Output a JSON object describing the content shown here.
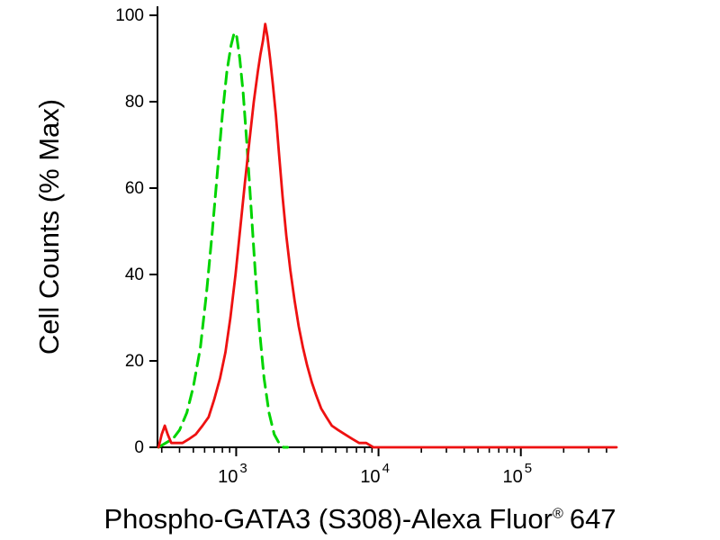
{
  "chart_data": {
    "type": "line",
    "subtype": "flow-cytometry-histogram",
    "title": "",
    "xlabel": "Phospho-GATA3 (S308)-Alexa Fluor® 647",
    "xlabel_parts": {
      "main": "Phospho-GATA3 (S308)-Alexa Fluor",
      "registered_mark": "®",
      "suffix": "647"
    },
    "ylabel": "Cell Counts (% Max)",
    "x_scale": "log",
    "xlim": [
      280,
      470000
    ],
    "ylim": [
      0,
      100
    ],
    "y_ticks": [
      0,
      20,
      40,
      60,
      80,
      100
    ],
    "x_major_ticks": [
      1000,
      10000,
      100000
    ],
    "x_tick_labels": [
      {
        "base": "10",
        "exp": "3"
      },
      {
        "base": "10",
        "exp": "4"
      },
      {
        "base": "10",
        "exp": "5"
      }
    ],
    "x_minor_ticks": [
      300,
      400,
      500,
      600,
      700,
      800,
      900,
      2000,
      3000,
      4000,
      5000,
      6000,
      7000,
      8000,
      9000,
      20000,
      30000,
      40000,
      50000,
      60000,
      70000,
      80000,
      90000,
      200000,
      300000,
      400000
    ],
    "grid": false,
    "legend": "none",
    "axis_color": "#000000",
    "background_color": "#ffffff",
    "series": [
      {
        "id": "green-dashed",
        "name": "green-dashed-curve",
        "color": "#00d400",
        "line_style": "dashed",
        "line_width": 3,
        "x": [
          285,
          320,
          360,
          400,
          450,
          500,
          560,
          620,
          680,
          740,
          800,
          860,
          920,
          970,
          1010,
          1060,
          1120,
          1190,
          1270,
          1360,
          1460,
          1570,
          1700,
          1850,
          2000,
          2150,
          2300
        ],
        "y": [
          0,
          1,
          2,
          4,
          8,
          14,
          23,
          36,
          50,
          64,
          77,
          87,
          93,
          96,
          95,
          90,
          82,
          70,
          56,
          41,
          27,
          16,
          8,
          3,
          1,
          0,
          0
        ]
      },
      {
        "id": "red-solid",
        "name": "red-solid-curve",
        "color": "#ee1111",
        "line_style": "solid",
        "line_width": 2.8,
        "x": [
          285,
          300,
          315,
          330,
          350,
          380,
          420,
          470,
          520,
          580,
          640,
          700,
          770,
          840,
          910,
          990,
          1070,
          1150,
          1240,
          1330,
          1420,
          1480,
          1540,
          1600,
          1660,
          1730,
          1810,
          1900,
          2000,
          2120,
          2250,
          2400,
          2570,
          2750,
          2950,
          3150,
          3400,
          3650,
          3950,
          4300,
          4700,
          5200,
          5800,
          6500,
          7300,
          8200,
          9200,
          11000,
          470000
        ],
        "y": [
          0,
          3,
          5,
          3,
          1,
          1,
          1,
          2,
          3,
          5,
          7,
          11,
          16,
          22,
          30,
          40,
          51,
          61,
          71,
          80,
          87,
          91,
          94,
          98,
          95,
          90,
          84,
          77,
          68,
          58,
          49,
          41,
          34,
          28,
          23,
          19,
          15,
          12,
          9,
          7,
          5,
          4,
          3,
          2,
          1,
          1,
          0,
          0,
          0
        ]
      }
    ]
  }
}
